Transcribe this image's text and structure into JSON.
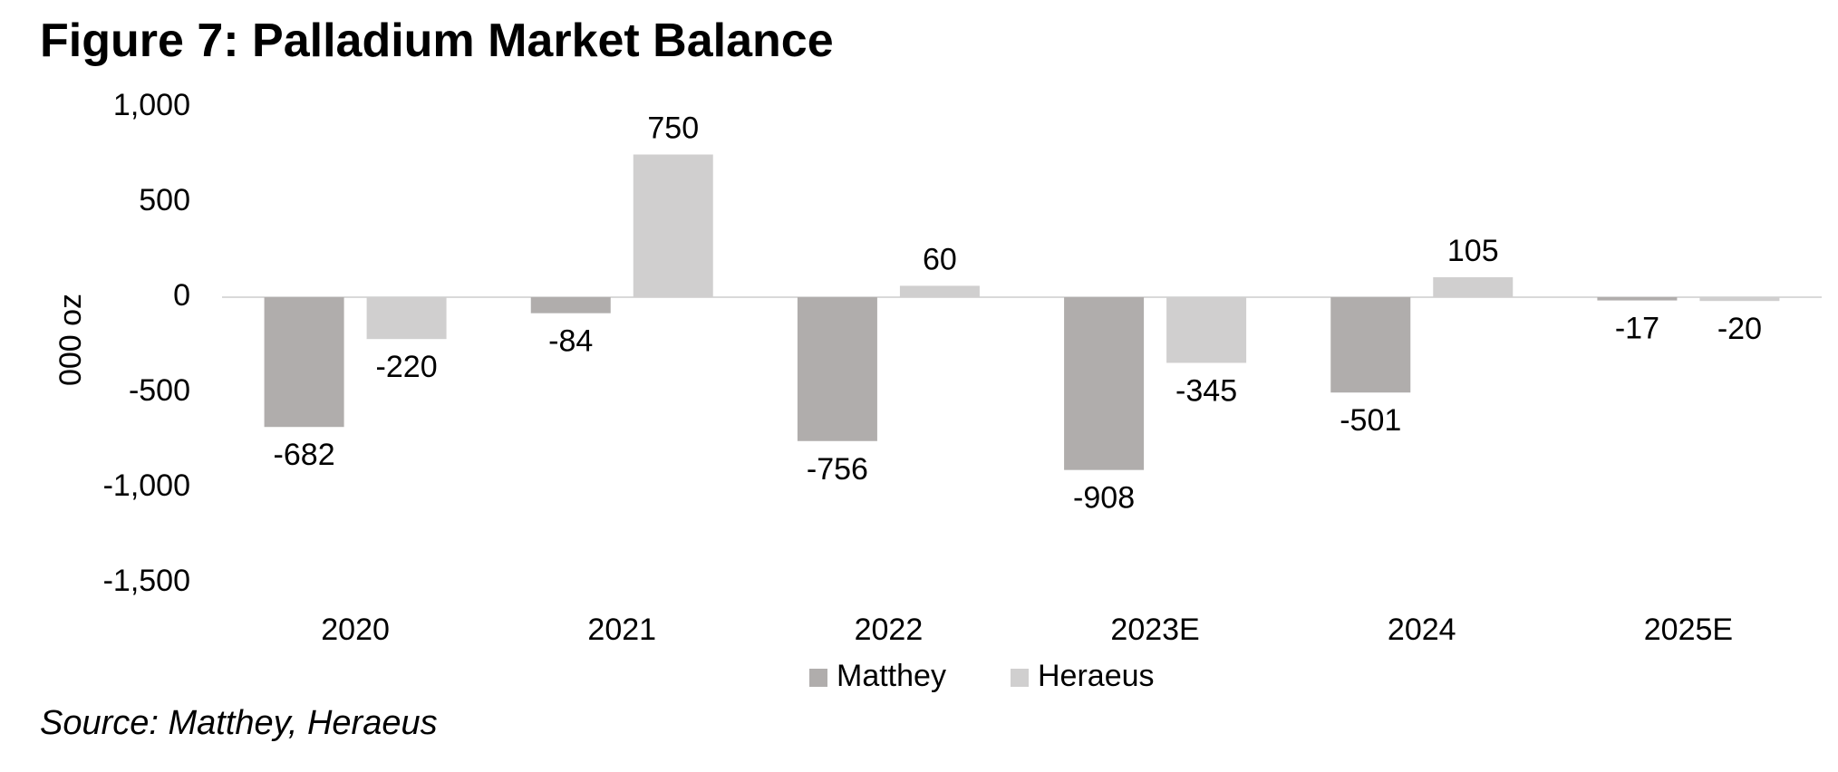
{
  "figure": {
    "title": "Figure 7: Palladium Market Balance",
    "source": "Source: Matthey, Heraeus"
  },
  "chart_data": {
    "type": "bar",
    "title": "Figure 7: Palladium Market Balance",
    "xlabel": "",
    "ylabel": "000 oz",
    "ylim": [
      -1500,
      1000
    ],
    "yticks": [
      1000,
      500,
      0,
      -500,
      -1000,
      -1500
    ],
    "ytick_labels": [
      "1,000",
      "500",
      "0",
      "-500",
      "-1,000",
      "-1,500"
    ],
    "categories": [
      "2020",
      "2021",
      "2022",
      "2023E",
      "2024",
      "2025E"
    ],
    "series": [
      {
        "name": "Matthey",
        "color": "#b0adac",
        "values": [
          -682,
          -84,
          -756,
          -908,
          -501,
          -17
        ],
        "labels": [
          "-682",
          "-84",
          "-756",
          "-908",
          "-501",
          "-17"
        ]
      },
      {
        "name": "Heraeus",
        "color": "#d0cfcf",
        "values": [
          -220,
          750,
          60,
          -345,
          105,
          -20
        ],
        "labels": [
          "-220",
          "750",
          "60",
          "-345",
          "105",
          "-20"
        ]
      }
    ],
    "legend_position": "bottom",
    "grid": false,
    "zero_line_color": "#d9d9d9"
  }
}
